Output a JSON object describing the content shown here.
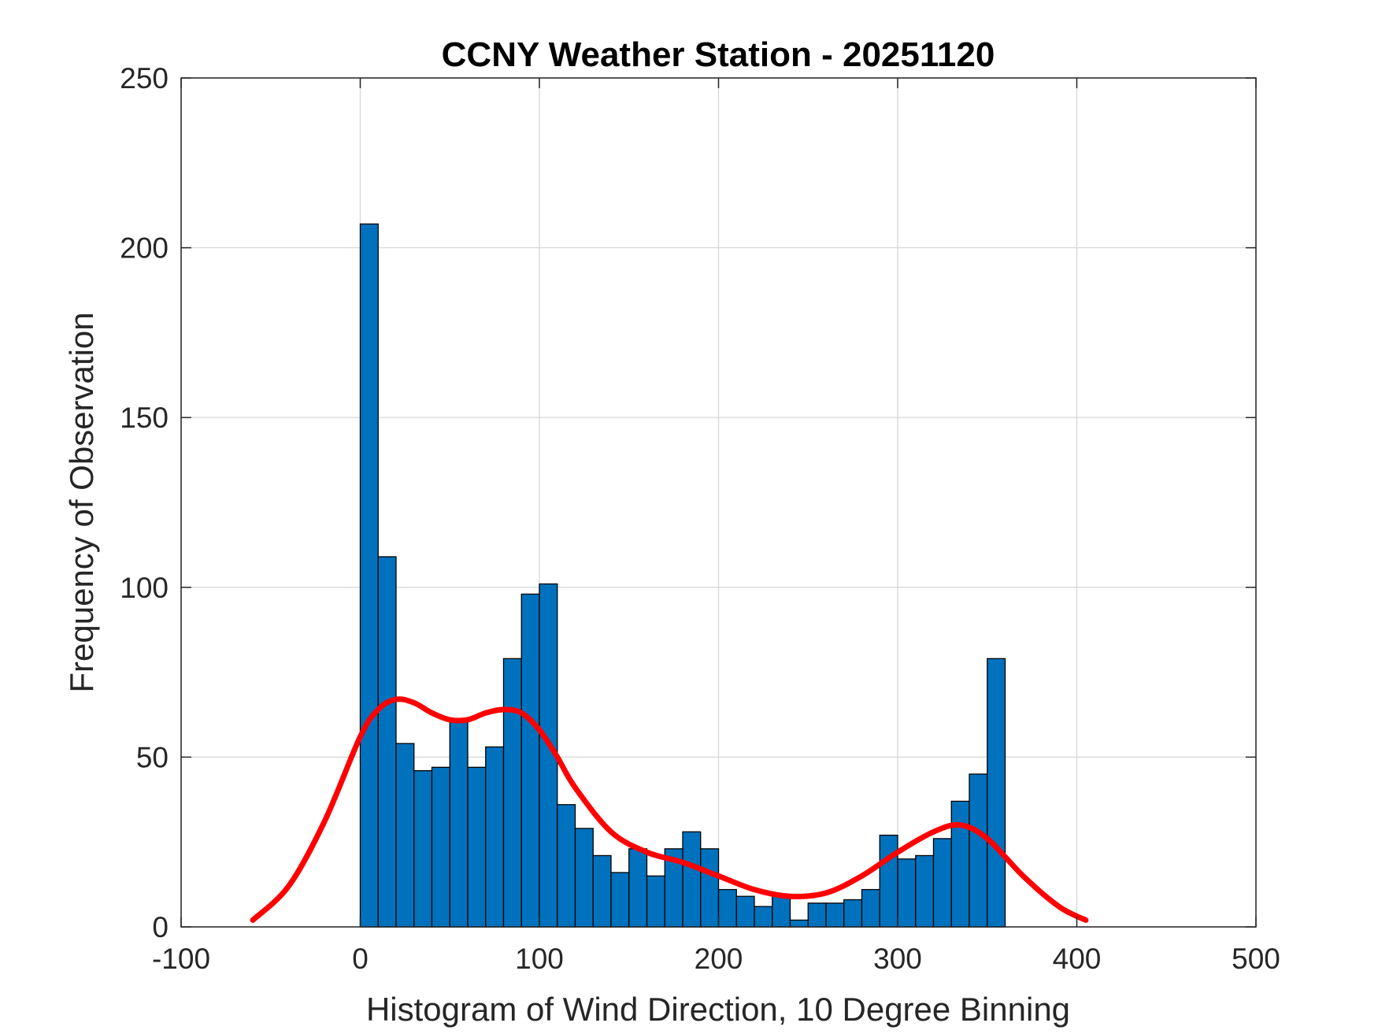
{
  "chart_data": {
    "type": "bar",
    "title": "CCNY Weather Station - 20251120",
    "xlabel": "Histogram of Wind Direction, 10 Degree Binning",
    "ylabel": "Frequency of Observation",
    "xlim": [
      -100,
      500
    ],
    "ylim": [
      0,
      250
    ],
    "x_ticks": [
      -100,
      0,
      100,
      200,
      300,
      400,
      500
    ],
    "y_ticks": [
      0,
      50,
      100,
      150,
      200,
      250
    ],
    "grid": true,
    "bin_width": 10,
    "bin_edges_start": [
      0,
      10,
      20,
      30,
      40,
      50,
      60,
      70,
      80,
      90,
      100,
      110,
      120,
      130,
      140,
      150,
      160,
      170,
      180,
      190,
      200,
      210,
      220,
      230,
      240,
      250,
      260,
      270,
      280,
      290,
      300,
      310,
      320,
      330,
      340,
      350
    ],
    "values": [
      207,
      109,
      54,
      46,
      47,
      61,
      47,
      53,
      79,
      98,
      101,
      36,
      29,
      21,
      16,
      23,
      15,
      23,
      28,
      23,
      11,
      9,
      6,
      9,
      2,
      7,
      7,
      8,
      11,
      27,
      20,
      21,
      26,
      37,
      45,
      79
    ],
    "bar_color": "#0072BD",
    "bar_edge_color": "#000000",
    "density_curve": {
      "color": "#FF0000",
      "x": [
        -60,
        -40,
        -20,
        0,
        10,
        20,
        30,
        40,
        50,
        60,
        70,
        80,
        90,
        100,
        110,
        120,
        140,
        160,
        180,
        200,
        220,
        240,
        260,
        280,
        300,
        320,
        335,
        350,
        370,
        390,
        405
      ],
      "y": [
        2,
        12,
        31,
        56,
        64,
        67,
        66,
        63,
        61,
        61,
        63,
        64,
        63,
        58,
        50,
        41,
        28,
        22,
        19,
        15,
        11,
        9,
        10,
        15,
        22,
        28,
        30,
        26,
        15,
        6,
        2
      ]
    }
  }
}
